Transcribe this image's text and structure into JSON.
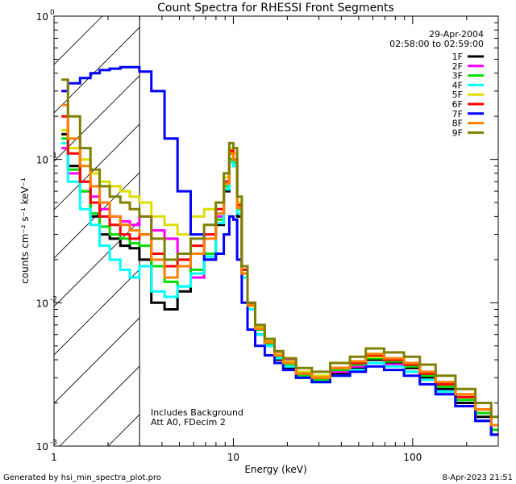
{
  "chart_data": {
    "type": "line",
    "title": "Count Spectra for RHESSI Front Segments",
    "date": "29-Apr-2004",
    "time_range": "02:58:00 to 02:59:00",
    "xlabel": "Energy (keV)",
    "ylabel": "counts cm⁻² s⁻¹ keV⁻¹",
    "xscale": "log",
    "yscale": "log",
    "xlim": [
      1,
      300
    ],
    "ylim": [
      0.001,
      1
    ],
    "x_ticks": [
      {
        "value": 1,
        "label": "1"
      },
      {
        "value": 10,
        "label": "10"
      },
      {
        "value": 100,
        "label": "100"
      }
    ],
    "y_ticks": [
      {
        "value": 1,
        "base": "10",
        "exp": "0"
      },
      {
        "value": 0.1,
        "base": "10",
        "exp": "-1"
      },
      {
        "value": 0.01,
        "base": "10",
        "exp": "-2"
      },
      {
        "value": 0.001,
        "base": "10",
        "exp": "-3"
      }
    ],
    "hatched_region": {
      "x_start": 1,
      "x_end": 3
    },
    "annotations": [
      "Includes Background",
      "Att A0, FDecim 2"
    ],
    "legend_position": "top-right",
    "series": [
      {
        "name": "1F",
        "color": "#000000",
        "x": [
          1.1,
          1.3,
          1.5,
          1.7,
          1.9,
          2.2,
          2.5,
          2.8,
          3.2,
          3.8,
          4.5,
          5.3,
          6.3,
          7.5,
          8.5,
          9.2,
          9.8,
          10.2,
          10.8,
          11.5,
          12.5,
          14,
          16,
          18,
          20,
          25,
          30,
          40,
          50,
          60,
          80,
          100,
          120,
          150,
          200,
          250,
          300
        ],
        "y": [
          0.15,
          0.09,
          0.06,
          0.04,
          0.03,
          0.028,
          0.025,
          0.024,
          0.02,
          0.01,
          0.009,
          0.012,
          0.015,
          0.02,
          0.035,
          0.06,
          0.1,
          0.09,
          0.04,
          0.015,
          0.009,
          0.006,
          0.005,
          0.004,
          0.0035,
          0.003,
          0.0028,
          0.0032,
          0.0035,
          0.004,
          0.0038,
          0.0035,
          0.003,
          0.0025,
          0.002,
          0.0016,
          0.0012
        ]
      },
      {
        "name": "2F",
        "color": "#ff00ff",
        "x": [
          1.1,
          1.3,
          1.5,
          1.7,
          1.9,
          2.2,
          2.5,
          2.8,
          3.2,
          3.8,
          4.5,
          5.3,
          6.3,
          7.5,
          8.5,
          9.2,
          9.8,
          10.2,
          10.8,
          11.5,
          12.5,
          14,
          16,
          18,
          20,
          25,
          30,
          40,
          50,
          60,
          80,
          100,
          120,
          150,
          200,
          250,
          300
        ],
        "y": [
          0.12,
          0.08,
          0.07,
          0.055,
          0.045,
          0.04,
          0.037,
          0.035,
          0.04,
          0.032,
          0.028,
          0.02,
          0.015,
          0.02,
          0.04,
          0.07,
          0.11,
          0.1,
          0.05,
          0.018,
          0.01,
          0.007,
          0.0055,
          0.0045,
          0.004,
          0.0032,
          0.003,
          0.0033,
          0.0036,
          0.0038,
          0.0037,
          0.0033,
          0.0029,
          0.0024,
          0.0019,
          0.0015,
          0.0012
        ]
      },
      {
        "name": "3F",
        "color": "#00dd00",
        "x": [
          1.1,
          1.3,
          1.5,
          1.7,
          1.9,
          2.2,
          2.5,
          2.8,
          3.2,
          3.8,
          4.5,
          5.3,
          6.3,
          7.5,
          8.5,
          9.2,
          9.8,
          10.2,
          10.8,
          11.5,
          12.5,
          14,
          16,
          18,
          20,
          25,
          30,
          40,
          50,
          60,
          80,
          100,
          120,
          150,
          200,
          250,
          300
        ],
        "y": [
          0.14,
          0.085,
          0.06,
          0.042,
          0.034,
          0.03,
          0.028,
          0.026,
          0.025,
          0.018,
          0.014,
          0.013,
          0.017,
          0.022,
          0.038,
          0.065,
          0.1,
          0.095,
          0.045,
          0.016,
          0.0095,
          0.0065,
          0.0052,
          0.0042,
          0.0037,
          0.0031,
          0.0029,
          0.0034,
          0.0037,
          0.0041,
          0.0039,
          0.0036,
          0.0031,
          0.0026,
          0.0021,
          0.0017,
          0.0013
        ]
      },
      {
        "name": "4F",
        "color": "#00ffff",
        "x": [
          1.1,
          1.3,
          1.5,
          1.7,
          1.9,
          2.2,
          2.5,
          2.8,
          3.2,
          3.8,
          4.5,
          5.3,
          6.3,
          7.5,
          8.5,
          9.2,
          9.8,
          10.2,
          10.8,
          11.5,
          12.5,
          14,
          16,
          18,
          20,
          25,
          30,
          40,
          50,
          60,
          80,
          100,
          120,
          150,
          200,
          250,
          300
        ],
        "y": [
          0.13,
          0.07,
          0.045,
          0.035,
          0.025,
          0.02,
          0.017,
          0.015,
          0.018,
          0.012,
          0.011,
          0.013,
          0.016,
          0.021,
          0.036,
          0.062,
          0.095,
          0.09,
          0.042,
          0.015,
          0.009,
          0.006,
          0.005,
          0.0041,
          0.0036,
          0.003,
          0.0028,
          0.0031,
          0.0034,
          0.0038,
          0.0036,
          0.0033,
          0.0029,
          0.0024,
          0.0019,
          0.0015,
          0.0012
        ]
      },
      {
        "name": "5F",
        "color": "#dddd00",
        "x": [
          1.1,
          1.3,
          1.5,
          1.7,
          1.9,
          2.2,
          2.5,
          2.8,
          3.2,
          3.8,
          4.5,
          5.3,
          6.3,
          7.5,
          8.5,
          9.2,
          9.8,
          10.2,
          10.8,
          11.5,
          12.5,
          14,
          16,
          18,
          20,
          25,
          30,
          40,
          50,
          60,
          80,
          100,
          120,
          150,
          200,
          250,
          300
        ],
        "y": [
          0.16,
          0.12,
          0.1,
          0.08,
          0.07,
          0.065,
          0.06,
          0.055,
          0.05,
          0.04,
          0.035,
          0.03,
          0.04,
          0.045,
          0.05,
          0.075,
          0.12,
          0.11,
          0.05,
          0.017,
          0.0095,
          0.0068,
          0.0054,
          0.0044,
          0.0039,
          0.0033,
          0.0031,
          0.0035,
          0.0038,
          0.0042,
          0.004,
          0.0037,
          0.0032,
          0.0027,
          0.0022,
          0.0018,
          0.0014
        ]
      },
      {
        "name": "6F",
        "color": "#ff0000",
        "x": [
          1.1,
          1.3,
          1.5,
          1.7,
          1.9,
          2.2,
          2.5,
          2.8,
          3.2,
          3.8,
          4.5,
          5.3,
          6.3,
          7.5,
          8.5,
          9.2,
          9.8,
          10.2,
          10.8,
          11.5,
          12.5,
          14,
          16,
          18,
          20,
          25,
          30,
          40,
          50,
          60,
          80,
          100,
          120,
          150,
          200,
          250,
          300
        ],
        "y": [
          0.2,
          0.11,
          0.07,
          0.05,
          0.04,
          0.035,
          0.03,
          0.028,
          0.03,
          0.022,
          0.018,
          0.02,
          0.025,
          0.03,
          0.045,
          0.07,
          0.115,
          0.1,
          0.048,
          0.017,
          0.0098,
          0.0066,
          0.0053,
          0.0043,
          0.0038,
          0.0032,
          0.003,
          0.0035,
          0.0038,
          0.0043,
          0.004,
          0.0037,
          0.0032,
          0.0027,
          0.0022,
          0.0018,
          0.0014
        ]
      },
      {
        "name": "7F",
        "color": "#0000ff",
        "x": [
          1.1,
          1.3,
          1.5,
          1.7,
          1.9,
          2.2,
          2.5,
          2.8,
          3.2,
          3.8,
          4.5,
          5.3,
          6.3,
          7.5,
          8.5,
          9.2,
          9.8,
          10.2,
          10.8,
          11.5,
          12.5,
          14,
          16,
          18,
          20,
          25,
          30,
          40,
          50,
          60,
          80,
          100,
          120,
          150,
          200,
          250,
          300
        ],
        "y": [
          0.3,
          0.34,
          0.37,
          0.4,
          0.42,
          0.43,
          0.44,
          0.44,
          0.41,
          0.3,
          0.14,
          0.06,
          0.03,
          0.02,
          0.022,
          0.03,
          0.04,
          0.038,
          0.02,
          0.01,
          0.0065,
          0.005,
          0.0043,
          0.0038,
          0.0034,
          0.003,
          0.0028,
          0.0031,
          0.0033,
          0.0036,
          0.0034,
          0.0031,
          0.0027,
          0.0023,
          0.0019,
          0.0015,
          0.0012
        ]
      },
      {
        "name": "8F",
        "color": "#ff8000",
        "x": [
          1.1,
          1.3,
          1.5,
          1.7,
          1.9,
          2.2,
          2.5,
          2.8,
          3.2,
          3.8,
          4.5,
          5.3,
          6.3,
          7.5,
          8.5,
          9.2,
          9.8,
          10.2,
          10.8,
          11.5,
          12.5,
          14,
          16,
          18,
          20,
          25,
          30,
          40,
          50,
          60,
          80,
          100,
          120,
          150,
          200,
          250,
          300
        ],
        "y": [
          0.24,
          0.14,
          0.09,
          0.065,
          0.05,
          0.04,
          0.035,
          0.032,
          0.03,
          0.02,
          0.015,
          0.018,
          0.022,
          0.028,
          0.042,
          0.068,
          0.11,
          0.1,
          0.046,
          0.016,
          0.0096,
          0.0066,
          0.0053,
          0.0043,
          0.0038,
          0.0032,
          0.003,
          0.0035,
          0.0039,
          0.0044,
          0.0041,
          0.0038,
          0.0033,
          0.0028,
          0.0023,
          0.0018,
          0.0014
        ]
      },
      {
        "name": "9F",
        "color": "#808000",
        "x": [
          1.1,
          1.3,
          1.5,
          1.7,
          1.9,
          2.2,
          2.5,
          2.8,
          3.2,
          3.8,
          4.5,
          5.3,
          6.3,
          7.5,
          8.5,
          9.2,
          9.8,
          10.2,
          10.8,
          11.5,
          12.5,
          14,
          16,
          18,
          20,
          25,
          30,
          40,
          50,
          60,
          80,
          100,
          120,
          150,
          200,
          250,
          300
        ],
        "y": [
          0.36,
          0.2,
          0.12,
          0.085,
          0.065,
          0.055,
          0.05,
          0.045,
          0.04,
          0.028,
          0.02,
          0.022,
          0.028,
          0.035,
          0.05,
          0.08,
          0.13,
          0.12,
          0.055,
          0.018,
          0.01,
          0.007,
          0.0056,
          0.0046,
          0.0041,
          0.0035,
          0.0033,
          0.0038,
          0.0042,
          0.0048,
          0.0045,
          0.0042,
          0.0037,
          0.0031,
          0.0025,
          0.002,
          0.0016
        ]
      }
    ]
  },
  "footer": {
    "generated_by": "Generated by hsi_min_spectra_plot.pro",
    "timestamp": "8-Apr-2023 21:51"
  }
}
